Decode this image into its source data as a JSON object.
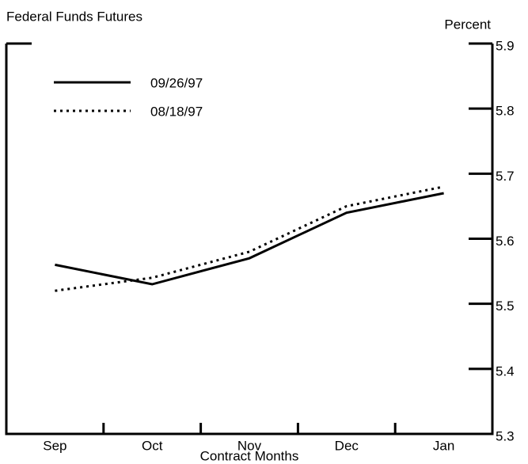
{
  "chart_data": {
    "type": "line",
    "title": "Federal Funds Futures",
    "y_axis_label": "Percent",
    "x_axis_label": "Contract Months",
    "categories": [
      "Sep",
      "Oct",
      "Nov",
      "Dec",
      "Jan"
    ],
    "series": [
      {
        "name": "09/26/97",
        "color": "#000000",
        "style": "solid",
        "values": [
          5.56,
          5.53,
          5.57,
          5.64,
          5.67
        ]
      },
      {
        "name": "08/18/97",
        "color": "#000000",
        "style": "dotted",
        "values": [
          5.52,
          5.54,
          5.58,
          5.65,
          5.68
        ]
      }
    ],
    "ylim": [
      5.3,
      5.9
    ],
    "yticks": [
      5.3,
      5.4,
      5.5,
      5.6,
      5.7,
      5.8,
      5.9
    ],
    "y_axis_side": "right",
    "grid": false,
    "legend": "upper left"
  }
}
